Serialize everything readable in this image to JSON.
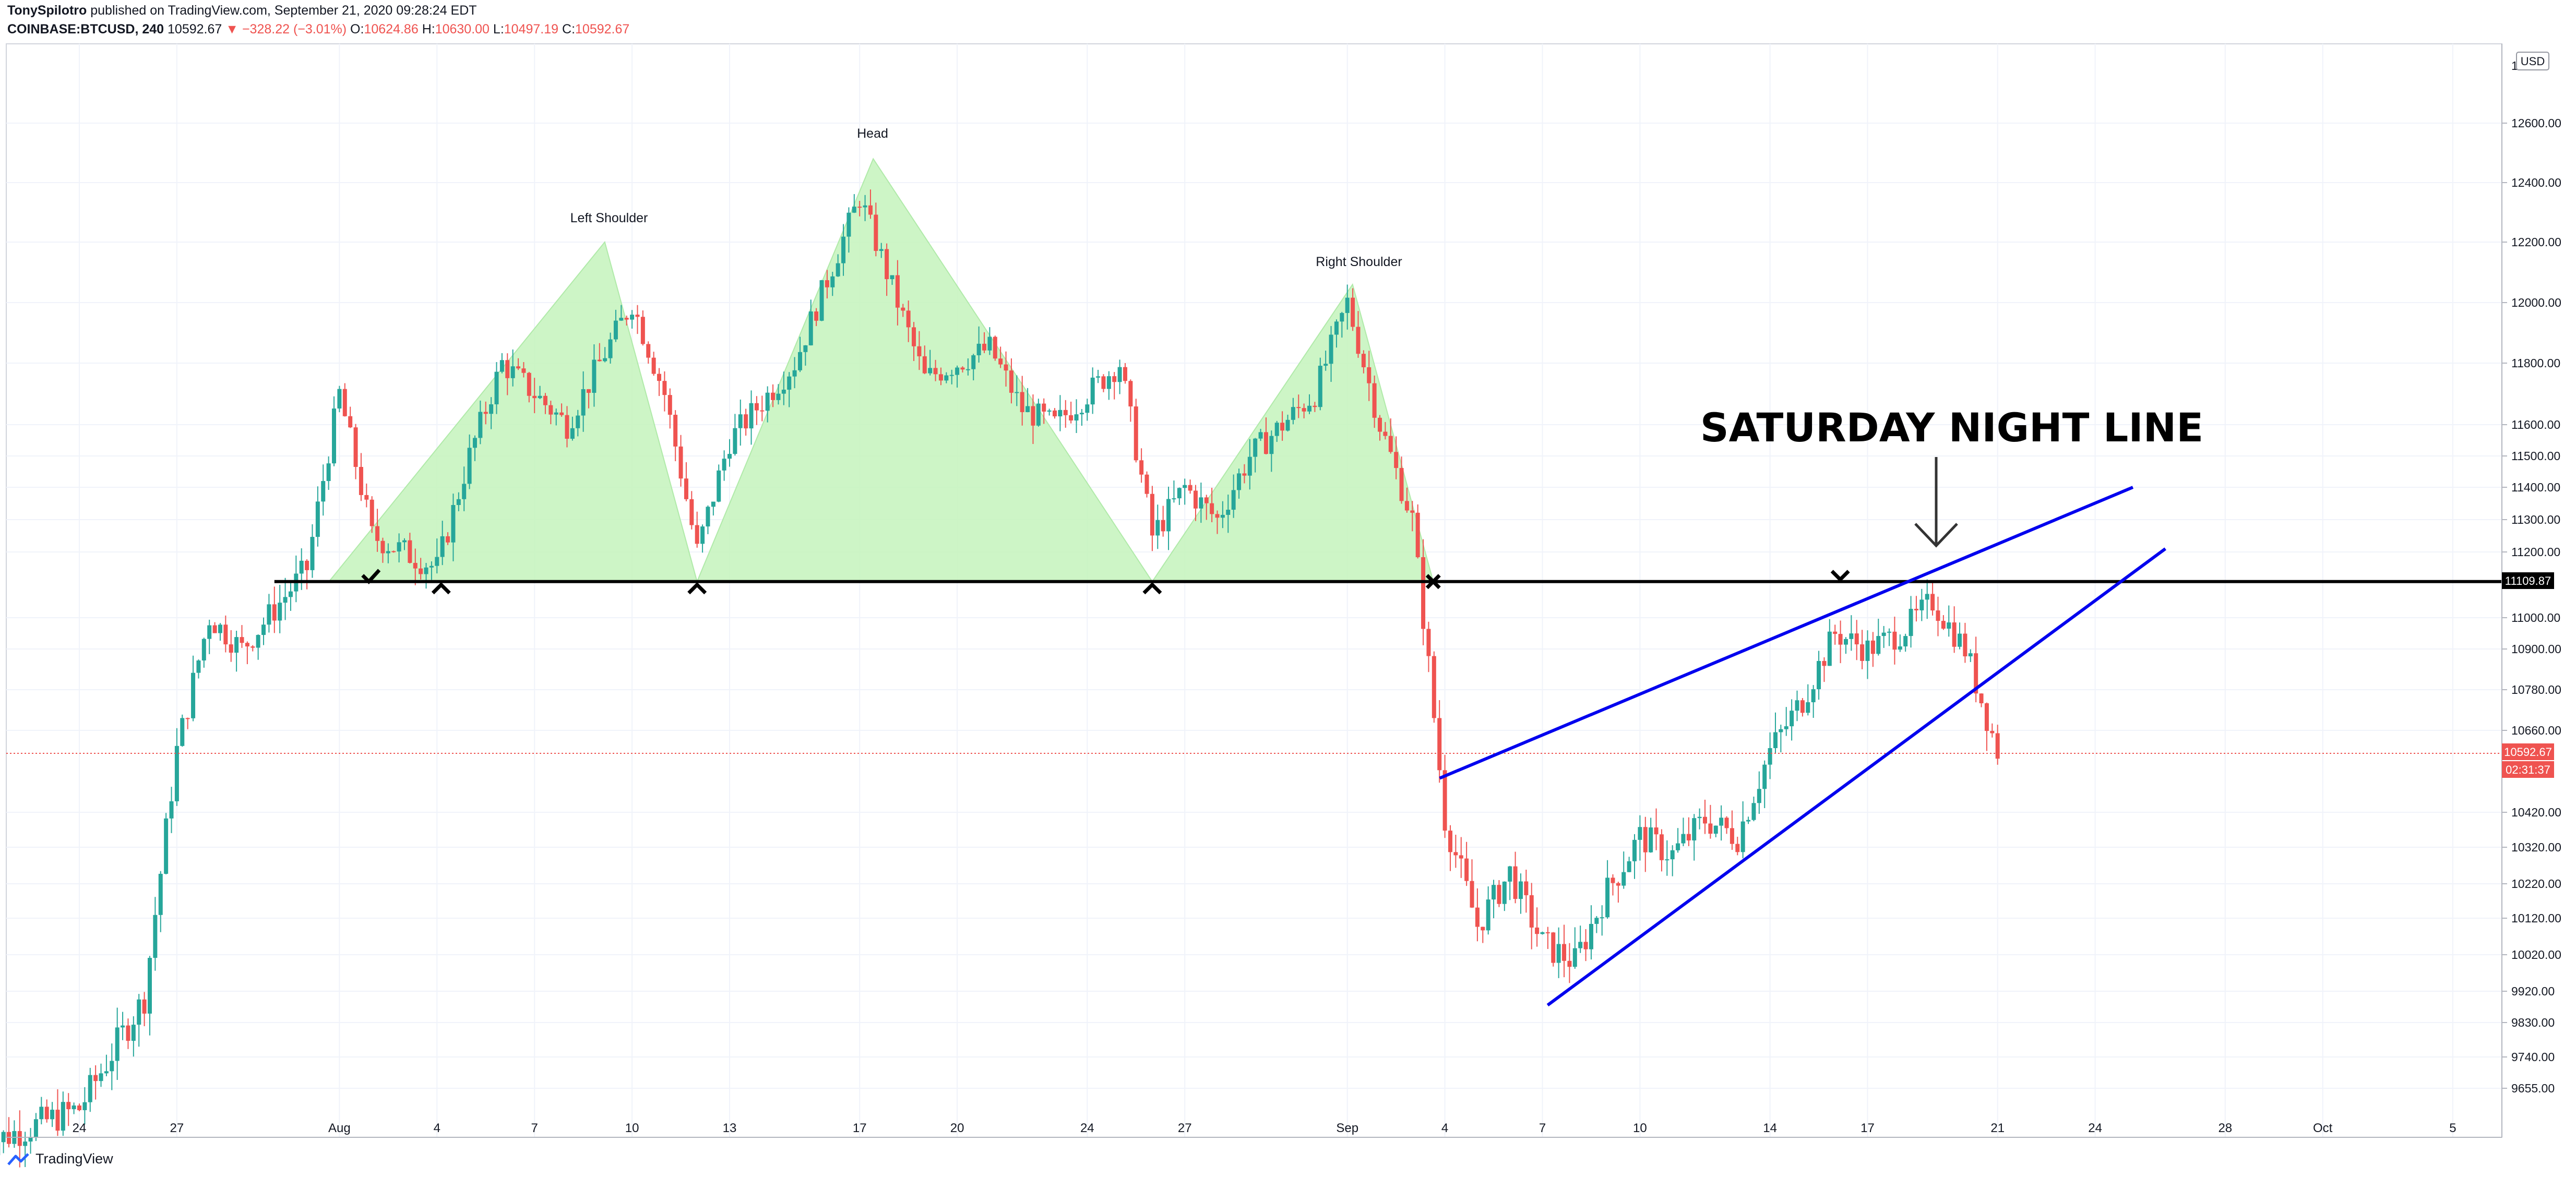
{
  "header": {
    "author": "TonySpilotro",
    "published_text": "published on TradingView.com, September 21, 2020 09:28:24 EDT",
    "symbol": "COINBASE:BTCUSD, 240",
    "last": "10592.67",
    "change": "▼ −328.22 (−3.01%)",
    "open_label": "O:",
    "open": "10624.86",
    "high_label": "H:",
    "high": "10630.00",
    "low_label": "L:",
    "low": "10497.19",
    "close_label": "C:",
    "close": "10592.67"
  },
  "footer": {
    "brand": "TradingView",
    "logo_icon": "tradingview-logo-icon"
  },
  "price_axis": {
    "currency": "USD",
    "current_price_label": "10592.67",
    "countdown_label": "02:31:37",
    "neckline_label": "11109.87",
    "clipped_top_label": "12..."
  },
  "annotations": {
    "left_shoulder": "Left Shoulder",
    "head": "Head",
    "right_shoulder": "Right Shoulder",
    "banner": "SATURDAY NIGHT LINE"
  },
  "colors": {
    "up": "#26a69a",
    "down": "#ef5350",
    "pattern_fill": "#c8f5c0",
    "neckline": "#000000",
    "wedge": "#0000ee",
    "current": "#ef5350"
  },
  "chart_data": {
    "type": "candlestick",
    "symbol": "COINBASE:BTCUSD",
    "interval": "240",
    "y_ticks": [
      "9655.00",
      "9740.00",
      "9830.00",
      "9920.00",
      "10020.00",
      "10120.00",
      "10220.00",
      "10320.00",
      "10420.00",
      "10660.00",
      "10780.00",
      "10900.00",
      "11000.00",
      "11200.00",
      "11300.00",
      "11400.00",
      "11500.00",
      "11600.00",
      "11800.00",
      "12000.00",
      "12200.00",
      "12400.00",
      "12600.00"
    ],
    "x_ticks": [
      "24",
      "27",
      "Aug",
      "4",
      "7",
      "10",
      "13",
      "17",
      "20",
      "24",
      "27",
      "Sep",
      "4",
      "7",
      "10",
      "14",
      "17",
      "21",
      "24",
      "28",
      "Oct",
      "5"
    ],
    "neckline_price": 11109.87,
    "current_price": 10592.67,
    "pattern": [
      {
        "name": "Left Shoulder",
        "date": "2020-08-09",
        "price": 12200
      },
      {
        "name": "Head",
        "date": "2020-08-17",
        "price": 12480
      },
      {
        "name": "Right Shoulder",
        "date": "2020-09-01",
        "price": 12060
      }
    ],
    "neckline_touches": [
      "2020-08-02",
      "2020-08-04",
      "2020-08-12",
      "2020-08-26",
      "2020-09-03",
      "2020-09-16"
    ],
    "wedge_upper": [
      {
        "date": "2020-09-04",
        "price": 10520
      },
      {
        "date": "2020-09-25",
        "price": 11400
      }
    ],
    "wedge_lower": [
      {
        "date": "2020-09-07",
        "price": 9880
      },
      {
        "date": "2020-09-26",
        "price": 11210
      }
    ]
  }
}
